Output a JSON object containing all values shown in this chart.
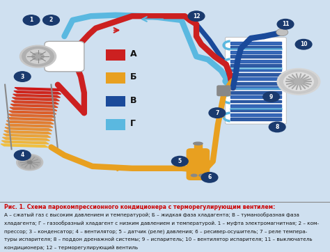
{
  "background_color": "#cfe0f0",
  "caption_bg": "#e8e8dc",
  "title_text": "Рис. 1. Схема парокомпрессионного кондиционера с терморегулирующим вентилем:",
  "caption_line1": "А – сжатый газ с высоким давлением и температурой; Б – жидкая фаза хладагента; В – туманообразная фаза",
  "caption_line2": "хладагента; Г – газообразный хладагент с низким давлением и температурой. 1 – муфта электромагнитная; 2 – ком-",
  "caption_line3": "прессор; 3 – конденсатор; 4 – вентилятор; 5 – датчик (реле) давления; 6 – ресивер-осушитель; 7 – реле темпера-",
  "caption_line4": "туры испарителя; 8 – поддон дренажной системы; 9 – испаритель; 10 – вентилятор испарителя; 11 – выключатель",
  "caption_line5": "кондиционера; 12 – терморегулирующий вентиль",
  "legend_items": [
    {
      "label": "А",
      "color": "#cc2020"
    },
    {
      "label": "Б",
      "color": "#e8a020"
    },
    {
      "label": "В",
      "color": "#1a4a9a"
    },
    {
      "label": "Г",
      "color": "#5ab8e0"
    }
  ],
  "cA": "#cc2020",
  "cB": "#e8a020",
  "cC": "#1a4a9a",
  "cD": "#5ab8e0",
  "lw": 6,
  "node_color": "#1a3a6e",
  "fig_width": 4.74,
  "fig_height": 3.62,
  "dpi": 100
}
